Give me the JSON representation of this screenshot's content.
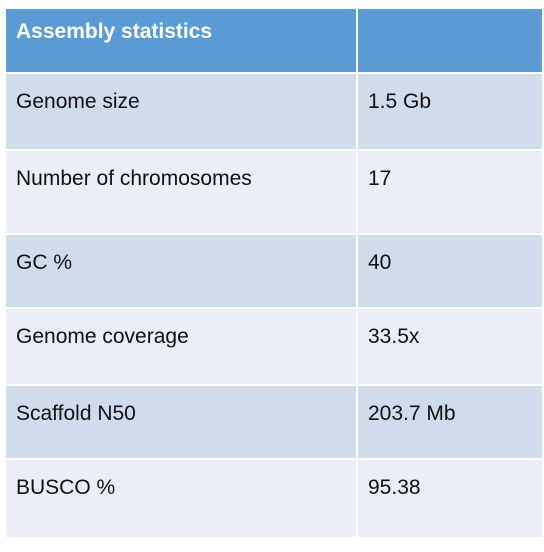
{
  "table": {
    "headers": [
      "Assembly statistics",
      ""
    ],
    "rows": [
      {
        "label": "Genome size",
        "value": "1.5 Gb"
      },
      {
        "label": "Number of chromosomes",
        "value": "17"
      },
      {
        "label": "GC %",
        "value": "40"
      },
      {
        "label": "Genome coverage",
        "value": "33.5x"
      },
      {
        "label": "Scaffold N50",
        "value": "203.7 Mb"
      },
      {
        "label": "BUSCO %",
        "value": "95.38"
      }
    ]
  },
  "colors": {
    "header_bg": "#5b9bd5",
    "row_odd_bg": "#cfdcee",
    "row_even_bg": "#e9eef7"
  }
}
